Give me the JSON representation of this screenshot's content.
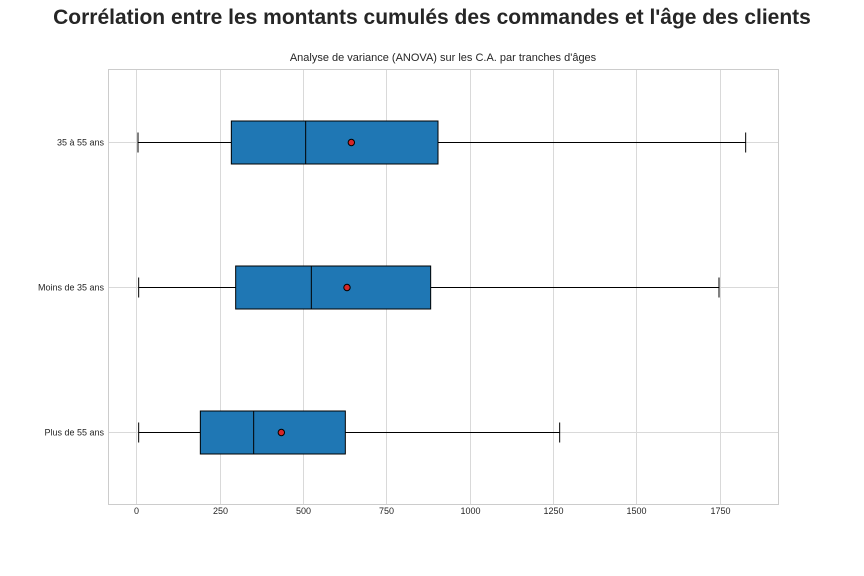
{
  "chart_data": {
    "type": "boxplot",
    "orientation": "horizontal",
    "title": "Corrélation entre les montants cumulés des commandes et l'âge des clients",
    "subtitle": "Analyse de variance (ANOVA) sur les C.A. par tranches d'âges",
    "xlabel": "",
    "ylabel": "",
    "xlim": [
      -85,
      1925
    ],
    "xticks": [
      0,
      250,
      500,
      750,
      1000,
      1250,
      1500,
      1750
    ],
    "grid": true,
    "categories": [
      "35 à 55 ans",
      "Moins de 35 ans",
      "Plus de 55 ans"
    ],
    "series": [
      {
        "category": "35 à 55 ans",
        "whisker_low": 5,
        "q1": 285,
        "median": 508,
        "q3": 905,
        "whisker_high": 1828,
        "mean": 645
      },
      {
        "category": "Moins de 35 ans",
        "whisker_low": 7,
        "q1": 298,
        "median": 525,
        "q3": 883,
        "whisker_high": 1748,
        "mean": 632
      },
      {
        "category": "Plus de 55 ans",
        "whisker_low": 7,
        "q1": 192,
        "median": 352,
        "q3": 627,
        "whisker_high": 1270,
        "mean": 435
      }
    ],
    "colors": {
      "box_fill": "#1f77b4",
      "box_edge": "#000000",
      "mean_marker": "#d62728",
      "grid": "#d9d9d9",
      "frame": "#cccccc"
    }
  }
}
